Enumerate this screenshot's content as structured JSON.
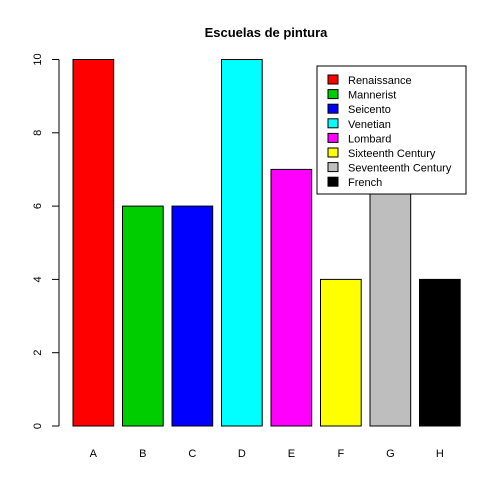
{
  "chart_data": {
    "type": "bar",
    "title": "Escuelas de pintura",
    "xlabel": "",
    "ylabel": "",
    "categories": [
      "A",
      "B",
      "C",
      "D",
      "E",
      "F",
      "G",
      "H"
    ],
    "values": [
      10,
      6,
      6,
      10,
      7,
      4,
      7,
      4
    ],
    "colors": [
      "#FF0000",
      "#00CD00",
      "#0000FF",
      "#00FFFF",
      "#FF00FF",
      "#FFFF00",
      "#BEBEBE",
      "#000000"
    ],
    "ylim": [
      0,
      10
    ],
    "yticks": [
      0,
      2,
      4,
      6,
      8,
      10
    ],
    "grid": false,
    "legend": {
      "placement": "top-right",
      "entries": [
        "Renaissance",
        "Mannerist",
        "Seicento",
        "Venetian",
        "Lombard",
        "Sixteenth Century",
        "Seventeenth Century",
        "French"
      ]
    }
  }
}
